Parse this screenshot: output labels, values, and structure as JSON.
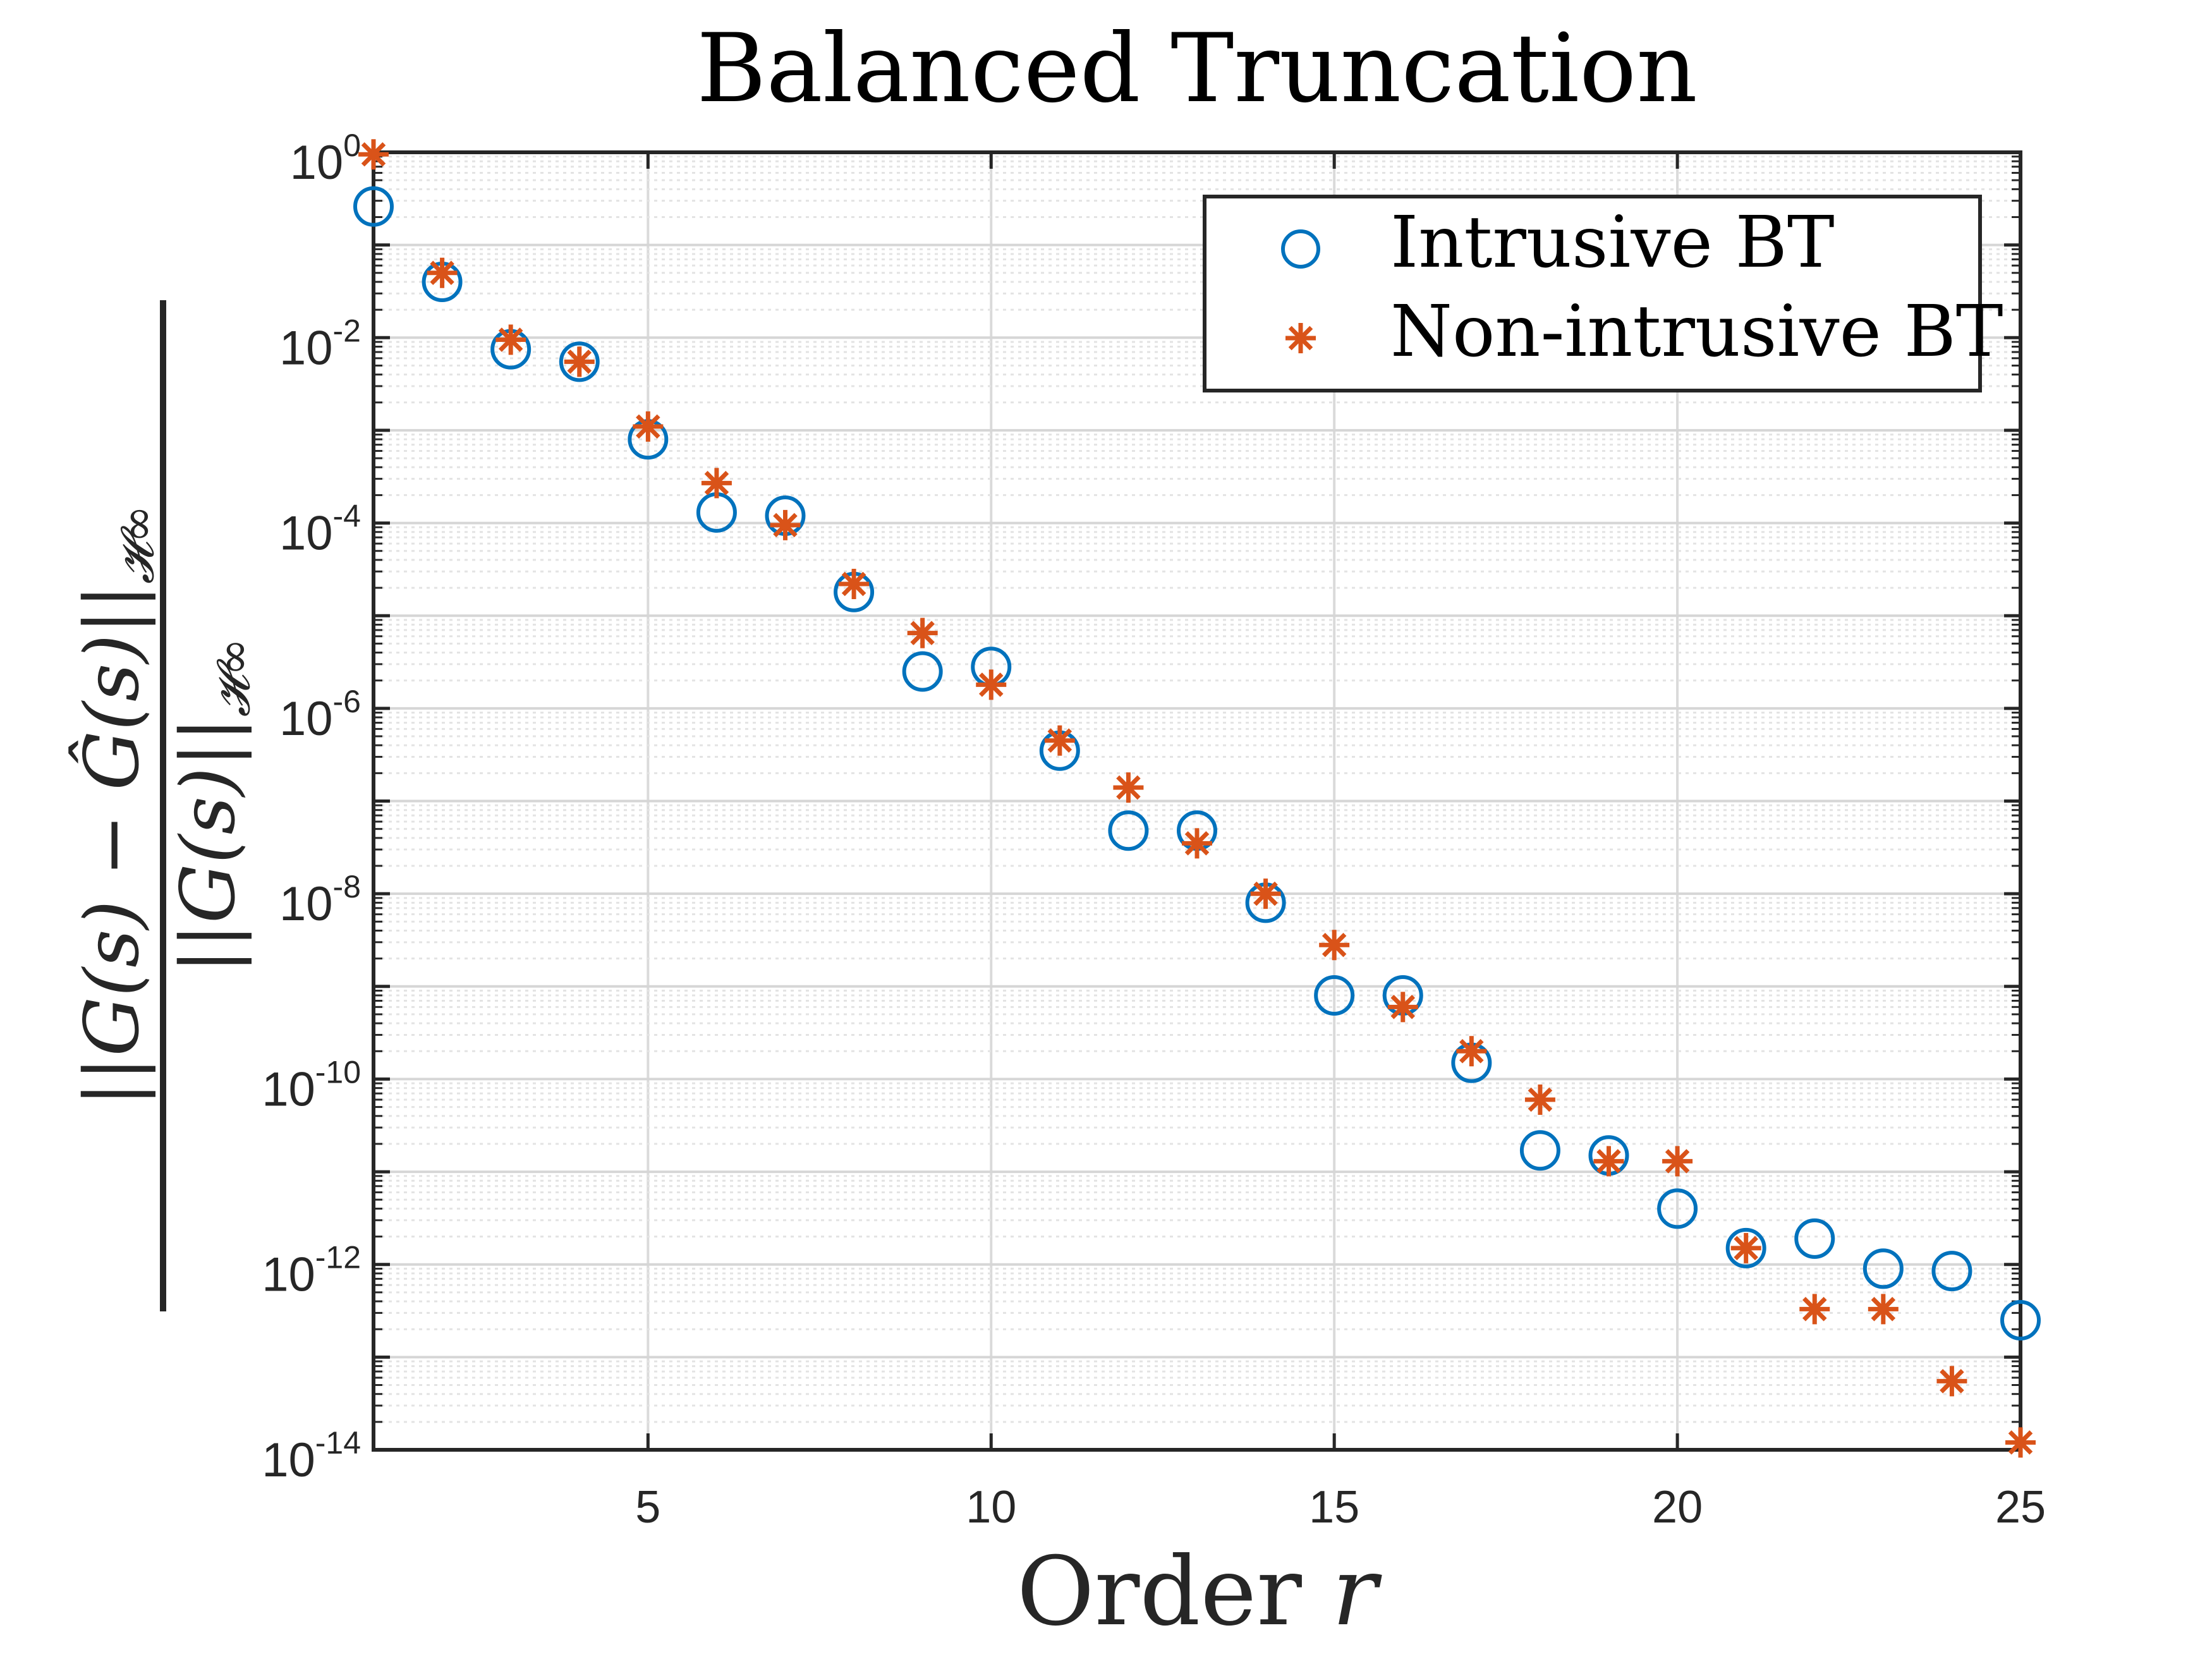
{
  "chart_data": {
    "type": "scatter",
    "title": "Balanced Truncation",
    "xlabel": "Order r",
    "ylabel": "||G(s) − Ĝ(s)||_H∞ / ||G(s)||_H∞",
    "xlim": [
      1,
      25
    ],
    "ylim": [
      1e-14,
      1
    ],
    "yscale": "log",
    "grid": true,
    "minor_grid": true,
    "legend_position": "top-right",
    "x_ticks": [
      5,
      10,
      15,
      20,
      25
    ],
    "y_ticks": [
      {
        "base": "10",
        "exp": "0"
      },
      {
        "base": "10",
        "exp": "-2"
      },
      {
        "base": "10",
        "exp": "-4"
      },
      {
        "base": "10",
        "exp": "-6"
      },
      {
        "base": "10",
        "exp": "-8"
      },
      {
        "base": "10",
        "exp": "-10"
      },
      {
        "base": "10",
        "exp": "-12"
      },
      {
        "base": "10",
        "exp": "-14"
      }
    ],
    "x": [
      1,
      2,
      3,
      4,
      5,
      6,
      7,
      8,
      9,
      10,
      11,
      12,
      13,
      14,
      15,
      16,
      17,
      18,
      19,
      20,
      21,
      22,
      23,
      24,
      25
    ],
    "series": [
      {
        "name": "Intrusive BT",
        "marker": "circle",
        "color": "#0072BD",
        "values": [
          0.26,
          0.04,
          0.0075,
          0.0055,
          0.0008,
          0.00013,
          0.00012,
          1.8e-05,
          2.5e-06,
          2.8e-06,
          3.5e-07,
          4.8e-08,
          4.8e-08,
          8e-09,
          8e-10,
          8e-10,
          1.5e-10,
          1.7e-11,
          1.5e-11,
          4e-12,
          1.5e-12,
          1.9e-12,
          9e-13,
          8.5e-13,
          2.5e-13
        ]
      },
      {
        "name": "Non-intrusive BT",
        "marker": "asterisk",
        "color": "#D95319",
        "values": [
          0.95,
          0.05,
          0.0095,
          0.0055,
          0.0011,
          0.00027,
          9.5e-05,
          2.2e-05,
          6.5e-06,
          1.8e-06,
          4.5e-07,
          1.4e-07,
          3.5e-08,
          1e-08,
          2.8e-09,
          6e-10,
          2e-10,
          6e-11,
          1.3e-11,
          1.3e-11,
          1.5e-12,
          3.3e-13,
          3.3e-13,
          5.5e-14,
          1.2e-14
        ]
      }
    ]
  }
}
